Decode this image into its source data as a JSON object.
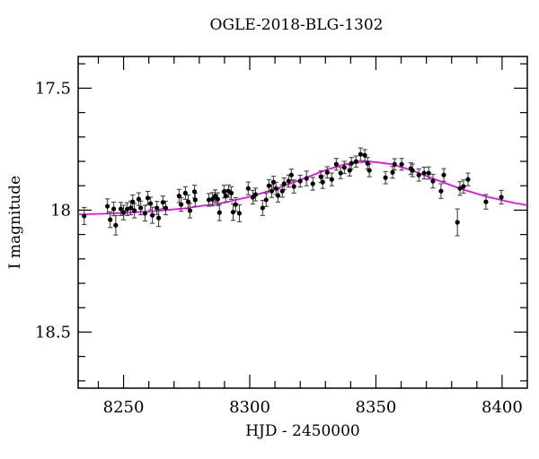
{
  "figure": {
    "title": "OGLE-2018-BLG-1302",
    "xlabel": "HJD - 2450000",
    "ylabel": "I magnitude"
  },
  "chart_data": {
    "type": "scatter",
    "title": "OGLE-2018-BLG-1302",
    "xlabel": "HJD - 2450000",
    "ylabel": "I magnitude",
    "xlim": [
      8232,
      8410
    ],
    "ylim": [
      17.37,
      18.73
    ],
    "y_axis_inverted_magnitude": true,
    "grid": false,
    "legend": "none",
    "x_major_ticks": [
      8250,
      8300,
      8350,
      8400
    ],
    "x_tick_labels": [
      "8250",
      "8300",
      "8350",
      "8400"
    ],
    "x_minor_step": 10,
    "y_major_ticks": [
      17.5,
      18.0,
      18.5
    ],
    "y_tick_labels": [
      "17.5",
      "18",
      "18.5"
    ],
    "y_minor_step": 0.1,
    "colors": {
      "model_line": "#ee00ee",
      "points": "#000000",
      "error_bars": "#444444",
      "axis": "#000000",
      "background": "#ffffff"
    },
    "series": [
      {
        "name": "I-band photometry",
        "marker": "filled-circle-with-errorbars"
      },
      {
        "name": "model curve",
        "marker": "line"
      }
    ],
    "points": [
      [
        8234.4,
        18.024,
        0.035
      ],
      [
        8243.6,
        17.984,
        0.03
      ],
      [
        8244.7,
        18.039,
        0.032
      ],
      [
        8246.1,
        17.995,
        0.028
      ],
      [
        8246.9,
        18.062,
        0.04
      ],
      [
        8248.9,
        17.995,
        0.027
      ],
      [
        8250.0,
        18.01,
        0.03
      ],
      [
        8251.4,
        17.996,
        0.026
      ],
      [
        8252.8,
        17.991,
        0.028
      ],
      [
        8253.6,
        17.966,
        0.028
      ],
      [
        8254.3,
        18.002,
        0.03
      ],
      [
        8256.0,
        17.955,
        0.026
      ],
      [
        8256.8,
        17.991,
        0.028
      ],
      [
        8258.5,
        18.013,
        0.032
      ],
      [
        8259.6,
        17.95,
        0.027
      ],
      [
        8260.7,
        17.973,
        0.026
      ],
      [
        8261.4,
        18.021,
        0.033
      ],
      [
        8263.2,
        17.991,
        0.027
      ],
      [
        8263.9,
        18.032,
        0.035
      ],
      [
        8265.6,
        17.968,
        0.026
      ],
      [
        8266.7,
        17.991,
        0.028
      ],
      [
        8272.0,
        17.942,
        0.027
      ],
      [
        8272.8,
        17.977,
        0.028
      ],
      [
        8274.5,
        17.93,
        0.026
      ],
      [
        8275.6,
        17.966,
        0.028
      ],
      [
        8276.3,
        18.002,
        0.03
      ],
      [
        8278.1,
        17.924,
        0.026
      ],
      [
        8278.4,
        17.958,
        0.027
      ],
      [
        8283.8,
        17.958,
        0.026
      ],
      [
        8285.2,
        17.955,
        0.027
      ],
      [
        8286.3,
        17.942,
        0.025
      ],
      [
        8287.3,
        17.955,
        0.026
      ],
      [
        8288.0,
        18.01,
        0.033
      ],
      [
        8289.8,
        17.924,
        0.026
      ],
      [
        8290.5,
        17.942,
        0.026
      ],
      [
        8291.6,
        17.922,
        0.025
      ],
      [
        8292.7,
        17.93,
        0.026
      ],
      [
        8293.4,
        18.008,
        0.034
      ],
      [
        8294.4,
        17.977,
        0.028
      ],
      [
        8295.9,
        18.013,
        0.035
      ],
      [
        8299.4,
        17.911,
        0.026
      ],
      [
        8301.2,
        17.947,
        0.028
      ],
      [
        8302.3,
        17.936,
        0.026
      ],
      [
        8305.1,
        17.991,
        0.031
      ],
      [
        8306.5,
        17.958,
        0.027
      ],
      [
        8307.6,
        17.9,
        0.025
      ],
      [
        8308.7,
        17.922,
        0.026
      ],
      [
        8309.4,
        17.885,
        0.024
      ],
      [
        8310.4,
        17.911,
        0.025
      ],
      [
        8311.2,
        17.94,
        0.027
      ],
      [
        8312.9,
        17.922,
        0.025
      ],
      [
        8313.6,
        17.892,
        0.024
      ],
      [
        8315.4,
        17.881,
        0.025
      ],
      [
        8316.5,
        17.856,
        0.024
      ],
      [
        8317.5,
        17.903,
        0.027
      ],
      [
        8320.0,
        17.881,
        0.024
      ],
      [
        8322.5,
        17.87,
        0.03
      ],
      [
        8325.0,
        17.892,
        0.026
      ],
      [
        8328.2,
        17.863,
        0.024
      ],
      [
        8328.9,
        17.885,
        0.026
      ],
      [
        8330.7,
        17.845,
        0.023
      ],
      [
        8332.5,
        17.874,
        0.026
      ],
      [
        8334.3,
        17.812,
        0.024
      ],
      [
        8336.0,
        17.848,
        0.023
      ],
      [
        8337.5,
        17.825,
        0.025
      ],
      [
        8339.6,
        17.837,
        0.023
      ],
      [
        8340.3,
        17.808,
        0.024
      ],
      [
        8342.1,
        17.801,
        0.023
      ],
      [
        8343.9,
        17.771,
        0.026
      ],
      [
        8345.6,
        17.775,
        0.023
      ],
      [
        8346.7,
        17.808,
        0.024
      ],
      [
        8347.4,
        17.837,
        0.026
      ],
      [
        8353.8,
        17.867,
        0.025
      ],
      [
        8356.6,
        17.845,
        0.024
      ],
      [
        8357.4,
        17.812,
        0.023
      ],
      [
        8360.2,
        17.812,
        0.024
      ],
      [
        8363.8,
        17.83,
        0.024
      ],
      [
        8364.5,
        17.837,
        0.026
      ],
      [
        8367.0,
        17.856,
        0.025
      ],
      [
        8369.1,
        17.848,
        0.024
      ],
      [
        8370.9,
        17.848,
        0.025
      ],
      [
        8372.6,
        17.881,
        0.028
      ],
      [
        8375.8,
        17.922,
        0.03
      ],
      [
        8376.9,
        17.856,
        0.026
      ],
      [
        8382.3,
        18.05,
        0.055
      ],
      [
        8383.3,
        17.911,
        0.028
      ],
      [
        8384.7,
        17.903,
        0.027
      ],
      [
        8386.5,
        17.874,
        0.026
      ],
      [
        8393.6,
        17.966,
        0.03
      ],
      [
        8399.7,
        17.947,
        0.028
      ]
    ],
    "model_curve": {
      "x": [
        8232,
        8245,
        8252,
        8260,
        8275,
        8290,
        8300,
        8310,
        8320,
        8330,
        8338,
        8347,
        8356,
        8364,
        8374,
        8384,
        8394,
        8404,
        8410
      ],
      "mag": [
        18.018,
        18.014,
        18.01,
        18.006,
        17.992,
        17.969,
        17.945,
        17.914,
        17.876,
        17.836,
        17.811,
        17.8,
        17.811,
        17.836,
        17.876,
        17.914,
        17.945,
        17.969,
        17.98
      ]
    }
  }
}
